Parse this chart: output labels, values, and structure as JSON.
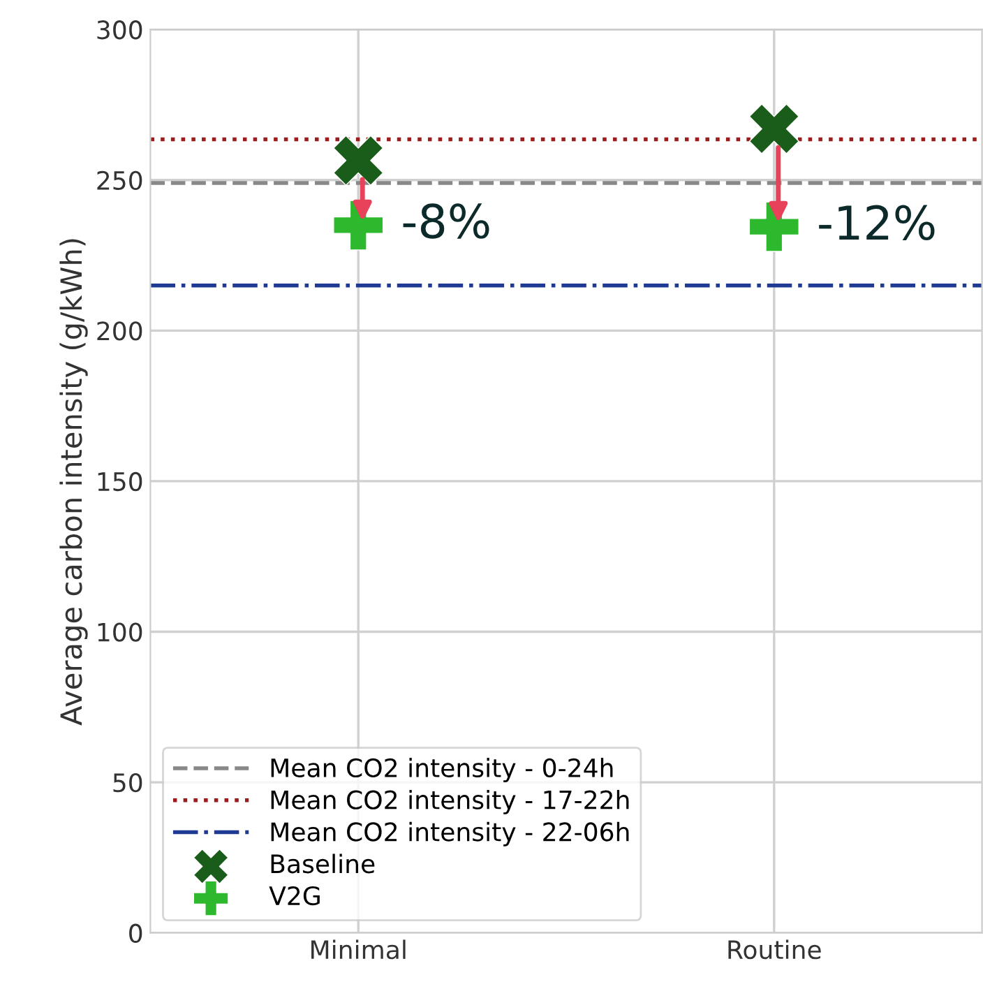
{
  "chart_data": {
    "type": "scatter",
    "ylabel": "Average carbon intensity (g/kWh)",
    "categories": [
      "Minimal",
      "Routine"
    ],
    "series": [
      {
        "name": "Baseline",
        "color": "#1a5c1a",
        "marker": "cross",
        "values": [
          256.5,
          267
        ]
      },
      {
        "name": "V2G",
        "color": "#2db82d",
        "marker": "plus",
        "values": [
          235,
          234.5
        ]
      }
    ],
    "ref_lines": [
      {
        "axis": "y",
        "value": 249,
        "label": "Mean CO2 intensity - 0-24h",
        "color": "#888888",
        "line_style": "dashed"
      },
      {
        "axis": "y",
        "value": 263.5,
        "label": "Mean CO2 intensity - 17-22h",
        "color": "#9b1c1c",
        "line_style": "dotted"
      },
      {
        "axis": "y",
        "value": 215,
        "label": "Mean CO2 intensity - 22-06h",
        "color": "#1f3a93",
        "line_style": "dashdot"
      }
    ],
    "annotations": [
      {
        "text": "-8%",
        "x": "Minimal",
        "y": 235
      },
      {
        "text": "-12%",
        "x": "Routine",
        "y": 234.5
      }
    ],
    "ylim": [
      0,
      300
    ],
    "yticks": [
      0,
      50,
      100,
      150,
      200,
      250,
      300
    ],
    "grid": true,
    "legend": "bottom left"
  }
}
